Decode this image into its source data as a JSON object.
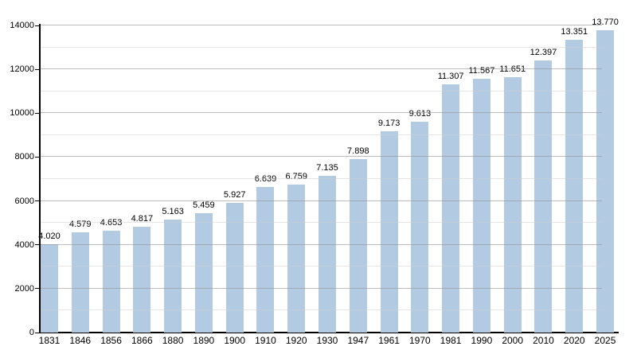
{
  "chart_data": {
    "type": "bar",
    "title": "",
    "xlabel": "",
    "ylabel": "",
    "categories": [
      "1831",
      "1846",
      "1856",
      "1866",
      "1880",
      "1890",
      "1900",
      "1910",
      "1920",
      "1930",
      "1947",
      "1961",
      "1970",
      "1981",
      "1990",
      "2000",
      "2010",
      "2020",
      "2025"
    ],
    "values": [
      4020,
      4579,
      4653,
      4817,
      5163,
      5459,
      5927,
      6639,
      6759,
      7135,
      7898,
      9173,
      9613,
      11307,
      11567,
      11651,
      12397,
      13351,
      13770
    ],
    "value_labels": [
      "4.020",
      "4.579",
      "4.653",
      "4.817",
      "5.163",
      "5.459",
      "5.927",
      "6.639",
      "6.759",
      "7.135",
      "7.898",
      "9.173",
      "9.613",
      "11.307",
      "11.567",
      "11.651",
      "12.397",
      "13.351",
      "13.770"
    ],
    "ylim": [
      0,
      14000
    ],
    "y_major_ticks": [
      0,
      2000,
      4000,
      6000,
      8000,
      10000,
      12000,
      14000
    ],
    "y_minor_step": 1000,
    "grid": "horizontal major+minor",
    "legend": "none",
    "colors": {
      "bar_fill": "#b2cbe3",
      "grid_major": "#919191",
      "grid_minor": "#cdcdcd",
      "axis": "#000000",
      "text": "#000000",
      "background": "#ffffff"
    }
  }
}
